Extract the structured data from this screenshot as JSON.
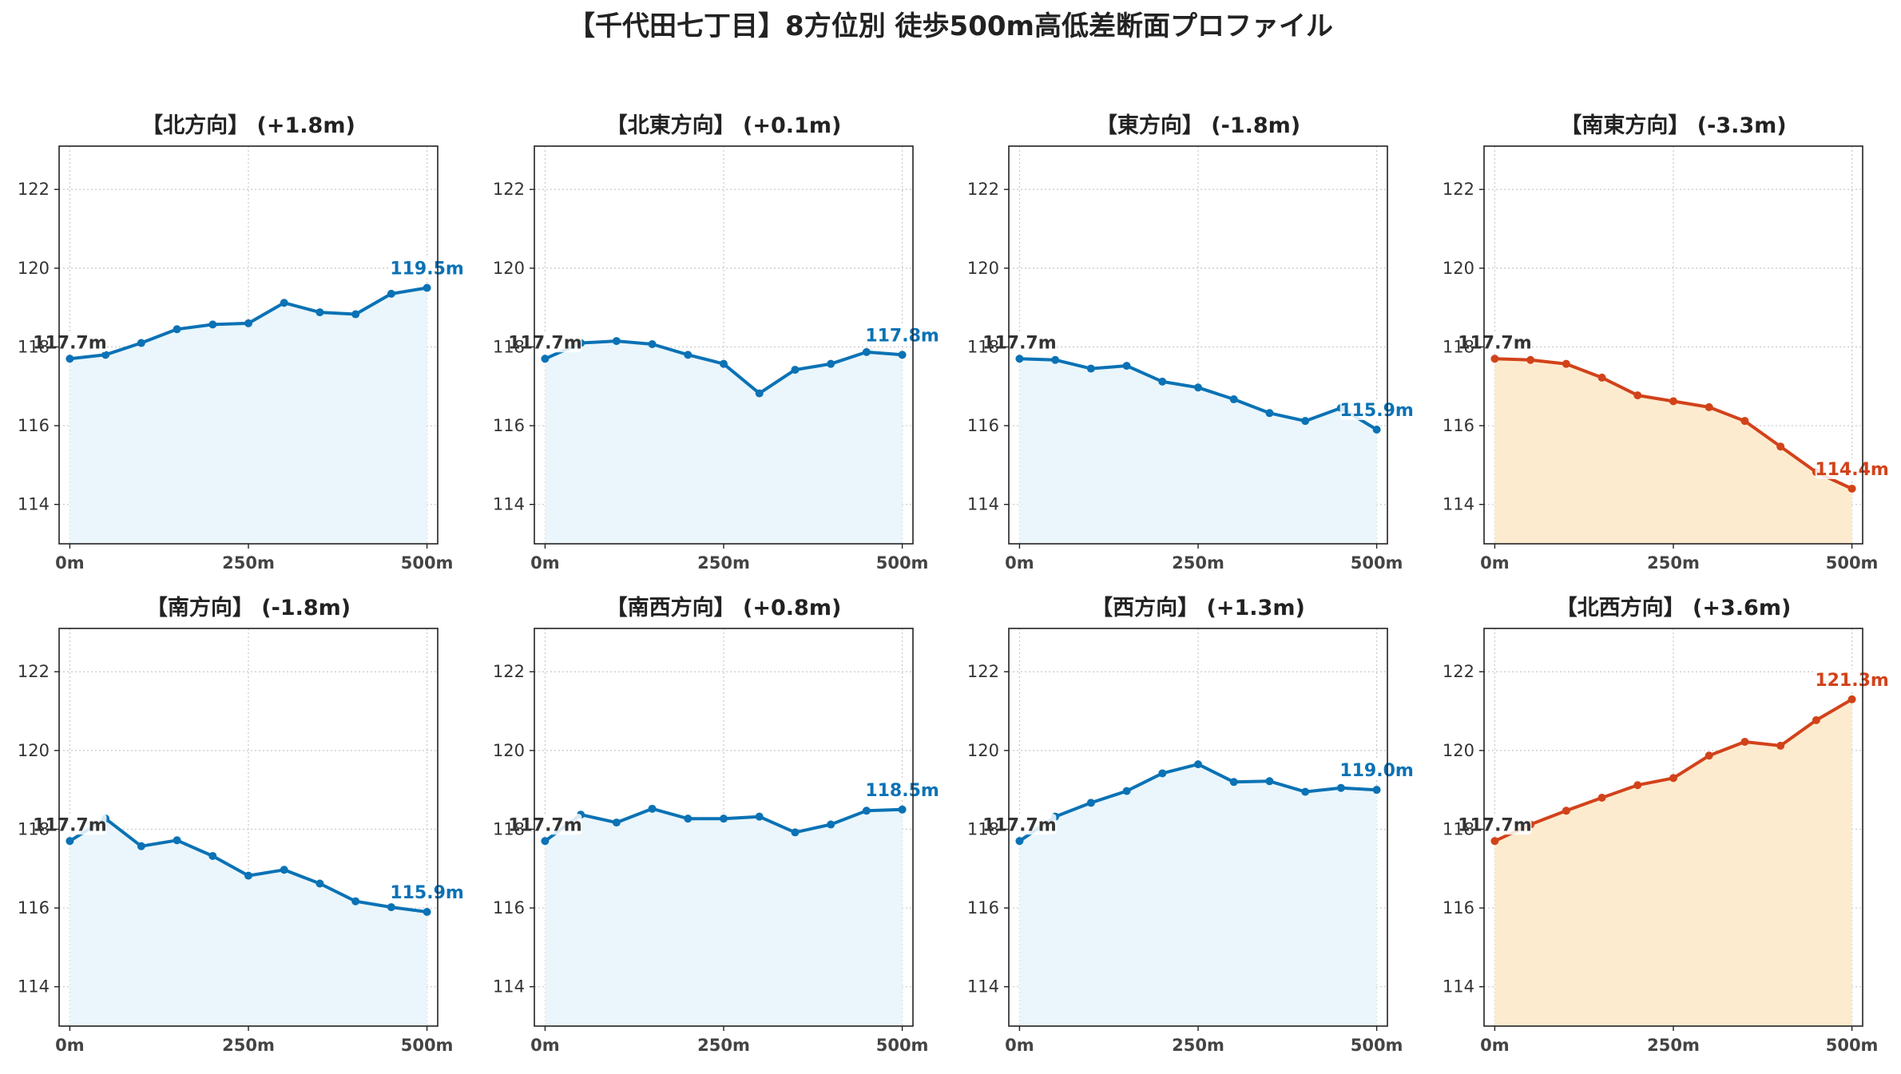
{
  "chart_data": {
    "type": "line",
    "title": "【千代田七丁目】8方位別 徒歩500m高低差断面プロファイル",
    "x": [
      0,
      50,
      100,
      150,
      200,
      250,
      300,
      350,
      400,
      450,
      500
    ],
    "x_ticks": [
      "0m",
      "250m",
      "500m"
    ],
    "y_ticks": [
      114,
      116,
      118,
      120,
      122
    ],
    "ylim": [
      113,
      123.1
    ],
    "xlim": [
      -15,
      515
    ],
    "grid": true,
    "colors": {
      "uphill_line": "#0a72b5",
      "uphill_fill": "#eaf6fb",
      "steep_line": "#d2421a",
      "steep_fill": "#fdebcf"
    },
    "panels": [
      {
        "title": "【北方向】 (+1.8m)",
        "style": "normal",
        "start_label": "117.7m",
        "end_label": "119.5m",
        "values": [
          117.7,
          117.8,
          118.1,
          118.45,
          118.57,
          118.6,
          119.12,
          118.88,
          118.83,
          119.35,
          119.5
        ]
      },
      {
        "title": "【北東方向】 (+0.1m)",
        "style": "normal",
        "start_label": "117.7m",
        "end_label": "117.8m",
        "values": [
          117.7,
          118.1,
          118.15,
          118.07,
          117.8,
          117.57,
          116.82,
          117.42,
          117.57,
          117.87,
          117.8
        ]
      },
      {
        "title": "【東方向】 (-1.8m)",
        "style": "normal",
        "start_label": "117.7m",
        "end_label": "115.9m",
        "values": [
          117.7,
          117.67,
          117.45,
          117.52,
          117.12,
          116.97,
          116.67,
          116.32,
          116.12,
          116.45,
          115.9
        ]
      },
      {
        "title": "【南東方向】 (-3.3m)",
        "style": "steep",
        "start_label": "117.7m",
        "end_label": "114.4m",
        "values": [
          117.7,
          117.67,
          117.57,
          117.22,
          116.77,
          116.62,
          116.47,
          116.12,
          115.47,
          114.82,
          114.4
        ]
      },
      {
        "title": "【南方向】 (-1.8m)",
        "style": "normal",
        "start_label": "117.7m",
        "end_label": "115.9m",
        "values": [
          117.7,
          118.27,
          117.57,
          117.72,
          117.32,
          116.82,
          116.97,
          116.62,
          116.17,
          116.02,
          115.9
        ]
      },
      {
        "title": "【南西方向】 (+0.8m)",
        "style": "normal",
        "start_label": "117.7m",
        "end_label": "118.5m",
        "values": [
          117.7,
          118.37,
          118.17,
          118.52,
          118.27,
          118.27,
          118.32,
          117.92,
          118.12,
          118.47,
          118.5
        ]
      },
      {
        "title": "【西方向】 (+1.3m)",
        "style": "normal",
        "start_label": "117.7m",
        "end_label": "119.0m",
        "values": [
          117.7,
          118.32,
          118.67,
          118.97,
          119.42,
          119.65,
          119.2,
          119.22,
          118.95,
          119.05,
          119.0
        ]
      },
      {
        "title": "【北西方向】 (+3.6m)",
        "style": "steep",
        "start_label": "117.7m",
        "end_label": "121.3m",
        "values": [
          117.7,
          118.12,
          118.47,
          118.8,
          119.12,
          119.3,
          119.87,
          120.22,
          120.12,
          120.77,
          121.3
        ]
      }
    ]
  }
}
